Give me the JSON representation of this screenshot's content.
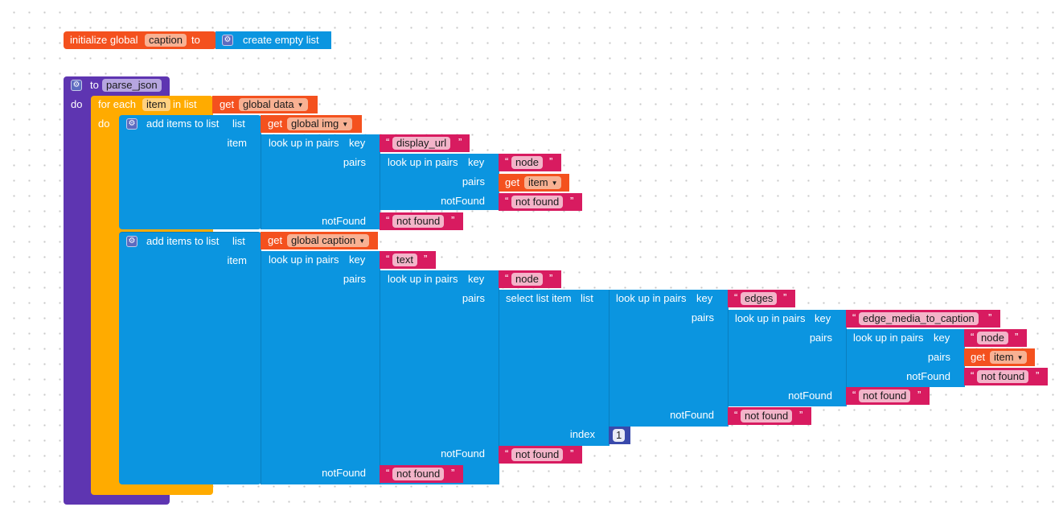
{
  "init_block": {
    "prefix": "initialize global",
    "var_name": "caption",
    "to": "to",
    "value": "create empty list"
  },
  "procedure": {
    "to": "to",
    "name": "parse_json",
    "do": "do"
  },
  "foreach": {
    "label": "for each",
    "var": "item",
    "in_list": "in list",
    "get": "get",
    "list_var": "global data",
    "do": "do"
  },
  "add1": {
    "label": "add items to list",
    "list_lbl": "list",
    "get": "get",
    "list_var": "global img",
    "item_lbl": "item",
    "lookup1": {
      "label": "look up in pairs",
      "key_lbl": "key",
      "key": "display_url",
      "pairs_lbl": "pairs",
      "notfound_lbl": "notFound",
      "notfound": "not found"
    },
    "lookup2": {
      "label": "look up in pairs",
      "key_lbl": "key",
      "key": "node",
      "pairs_lbl": "pairs",
      "get": "get",
      "pairs_var": "item",
      "notfound_lbl": "notFound",
      "notfound": "not found"
    }
  },
  "add2": {
    "label": "add items to list",
    "list_lbl": "list",
    "get": "get",
    "list_var": "global caption",
    "item_lbl": "item",
    "lookupA": {
      "label": "look up in pairs",
      "key_lbl": "key",
      "key": "text",
      "pairs_lbl": "pairs",
      "notfound_lbl": "notFound",
      "notfound": "not found"
    },
    "lookupB": {
      "label": "look up in pairs",
      "key_lbl": "key",
      "key": "node",
      "pairs_lbl": "pairs",
      "notfound_lbl": "notFound",
      "notfound": "not found"
    },
    "select": {
      "label": "select list item",
      "list_lbl": "list",
      "index_lbl": "index",
      "index": "1"
    },
    "lookupC": {
      "label": "look up in pairs",
      "key_lbl": "key",
      "key": "edges",
      "pairs_lbl": "pairs",
      "notfound_lbl": "notFound",
      "notfound": "not found"
    },
    "lookupD": {
      "label": "look up in pairs",
      "key_lbl": "key",
      "key": "edge_media_to_caption",
      "pairs_lbl": "pairs",
      "notfound_lbl": "notFound",
      "notfound": "not found"
    },
    "lookupE": {
      "label": "look up in pairs",
      "key_lbl": "key",
      "key": "node",
      "pairs_lbl": "pairs",
      "get": "get",
      "pairs_var": "item",
      "notfound_lbl": "notFound",
      "notfound": "not found"
    }
  },
  "colors": {
    "variable": "#f4511e",
    "procedure": "#5e35b1",
    "control": "#ffab00",
    "lists_dictionaries": "#0b95e0",
    "text": "#d81b60",
    "math": "#3949ab"
  }
}
